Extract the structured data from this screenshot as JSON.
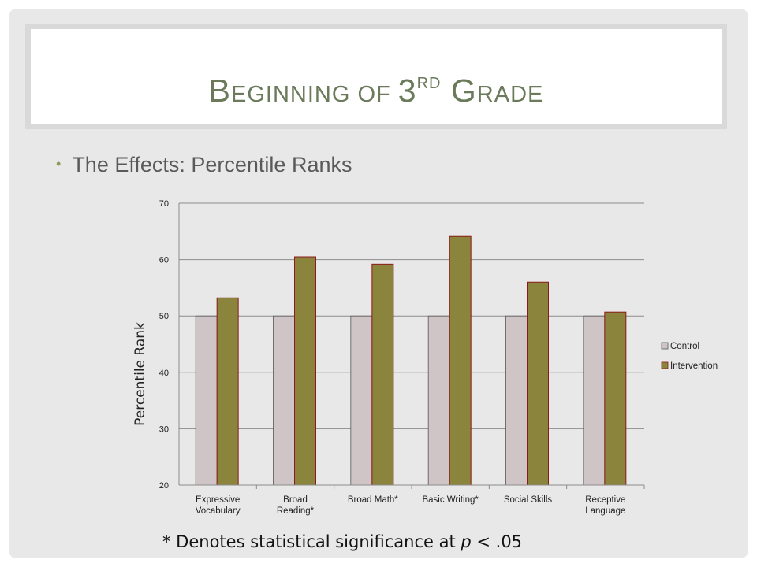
{
  "slide": {
    "title_main": "B",
    "title_rest1": "EGINNING OF ",
    "title_num": "3",
    "title_sup": "RD",
    "title_g": " G",
    "title_rest2": "RADE",
    "bullet": "The Effects: Percentile Ranks",
    "footnote_pre": "* Denotes statistical significance at ",
    "footnote_p": "p",
    "footnote_post": " < .05"
  },
  "colors": {
    "control": "#cfc4c6",
    "intervention": "#8b843c",
    "intervention_border": "#8b1a1a",
    "title": "#6a7a5a"
  },
  "chart_data": {
    "type": "bar",
    "ylabel": "Percentile Rank",
    "ylim": [
      20,
      70
    ],
    "yticks": [
      20,
      30,
      40,
      50,
      60,
      70
    ],
    "categories": [
      [
        "Expressive",
        "Vocabulary"
      ],
      [
        "Broad",
        "Reading*"
      ],
      [
        "Broad Math*"
      ],
      [
        "Basic Writing*"
      ],
      [
        "Social Skills"
      ],
      [
        "Receptive",
        "Language"
      ]
    ],
    "series": [
      {
        "name": "Control",
        "values": [
          50,
          50,
          50,
          50,
          50,
          50
        ]
      },
      {
        "name": "Intervention",
        "values": [
          53.2,
          60.5,
          59.2,
          64.1,
          56.0,
          50.7
        ]
      }
    ],
    "grid": true,
    "legend": "right"
  }
}
